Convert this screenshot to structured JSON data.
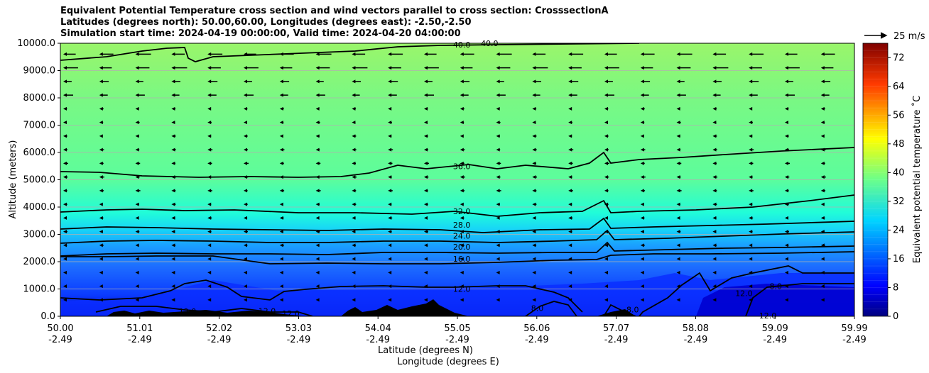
{
  "chart_data": {
    "type": "heatmap",
    "title_lines": [
      "Equivalent Potential Temperature cross section and wind vectors parallel to cross section: CrosssectionA",
      "Latitudes (degrees north): 50.00,60.00, Longitudes (degrees east): -2.50,-2.50",
      "Simulation start time: 2024-04-19 00:00:00, Valid time: 2024-04-20 04:00:00"
    ],
    "xlabel": "Latitude (degrees N)",
    "xlabel2": "Longitude (degrees E)",
    "ylabel": "Altitude (meters)",
    "xlim": [
      50.0,
      59.99
    ],
    "ylim": [
      0,
      10000
    ],
    "x_ticks": [
      {
        "lat": "50.00",
        "lon": "-2.49"
      },
      {
        "lat": "51.01",
        "lon": "-2.49"
      },
      {
        "lat": "52.02",
        "lon": "-2.49"
      },
      {
        "lat": "53.03",
        "lon": "-2.49"
      },
      {
        "lat": "54.04",
        "lon": "-2.49"
      },
      {
        "lat": "55.05",
        "lon": "-2.49"
      },
      {
        "lat": "56.06",
        "lon": "-2.49"
      },
      {
        "lat": "57.07",
        "lon": "-2.49"
      },
      {
        "lat": "58.08",
        "lon": "-2.49"
      },
      {
        "lat": "59.09",
        "lon": "-2.49"
      },
      {
        "lat": "59.99",
        "lon": "-2.49"
      }
    ],
    "y_ticks": [
      "0.0",
      "1000.0",
      "2000.0",
      "3000.0",
      "4000.0",
      "5000.0",
      "6000.0",
      "7000.0",
      "8000.0",
      "9000.0",
      "10000.0"
    ],
    "grid": true,
    "colorbar": {
      "label": "Equivalent potential temperature $^\\circ$C",
      "label_display": "Equivalent potential temperature ˚C",
      "min": 0,
      "max": 76,
      "ticks": [
        "0",
        "8",
        "16",
        "24",
        "32",
        "40",
        "48",
        "56",
        "64",
        "72"
      ]
    },
    "quiver_key": {
      "label": "25 m/s",
      "value": 25
    },
    "contour_levels": [
      8.0,
      12.0,
      16.0,
      20.0,
      24.0,
      28.0,
      32.0,
      36.0,
      40.0
    ],
    "contour_labels": [
      {
        "text": "40.0",
        "x": 55.05,
        "y": 9950
      },
      {
        "text": "40.0",
        "x": 55.4,
        "y": 10000
      },
      {
        "text": "36.0",
        "x": 55.05,
        "y": 5500
      },
      {
        "text": "32.0",
        "x": 55.05,
        "y": 3850
      },
      {
        "text": "28.0",
        "x": 55.05,
        "y": 3350
      },
      {
        "text": "24.0",
        "x": 55.05,
        "y": 2950
      },
      {
        "text": "20.0",
        "x": 55.05,
        "y": 2550
      },
      {
        "text": "16.0",
        "x": 55.05,
        "y": 2100
      },
      {
        "text": "12.0",
        "x": 55.05,
        "y": 1000
      },
      {
        "text": "12.0",
        "x": 51.6,
        "y": 180
      },
      {
        "text": "12.0",
        "x": 52.6,
        "y": 200
      },
      {
        "text": "12.0",
        "x": 52.9,
        "y": 100
      },
      {
        "text": "12.0",
        "x": 58.6,
        "y": 850
      },
      {
        "text": "12.0",
        "x": 58.9,
        "y": 30
      },
      {
        "text": "8.0",
        "x": 56.0,
        "y": 300
      },
      {
        "text": "8.0",
        "x": 57.2,
        "y": 250
      },
      {
        "text": "8.0",
        "x": 59.0,
        "y": 1100
      }
    ]
  }
}
